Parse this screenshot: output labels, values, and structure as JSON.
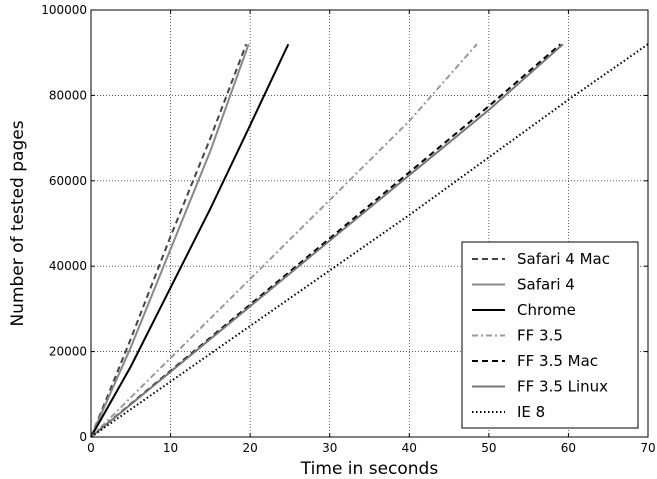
{
  "chart_data": {
    "type": "line",
    "xlabel": "Time in seconds",
    "ylabel": "Number of tested pages",
    "xlim": [
      0,
      70
    ],
    "ylim": [
      0,
      100000
    ],
    "xticks": [
      0,
      10,
      20,
      30,
      40,
      50,
      60,
      70
    ],
    "yticks": [
      0,
      20000,
      40000,
      60000,
      80000,
      100000
    ],
    "xtick_labels": [
      "0",
      "10",
      "20",
      "30",
      "40",
      "50",
      "60",
      "70"
    ],
    "ytick_labels": [
      "0",
      "20000",
      "40000",
      "60000",
      "80000",
      "100000"
    ],
    "grid": true,
    "legend_position": "lower-right",
    "series": [
      {
        "name": "Safari 4 Mac",
        "color": "#444444",
        "dash": "dashed",
        "x": [
          0,
          5,
          10,
          15,
          19.5
        ],
        "y": [
          0,
          23000,
          47000,
          70000,
          92000
        ]
      },
      {
        "name": "Safari 4",
        "color": "#888888",
        "dash": "solid",
        "x": [
          0,
          5,
          10,
          15,
          19.8
        ],
        "y": [
          0,
          21000,
          44000,
          67000,
          92000
        ]
      },
      {
        "name": "Chrome",
        "color": "#000000",
        "dash": "solid",
        "x": [
          0,
          5,
          10,
          15,
          20,
          24.8
        ],
        "y": [
          0,
          16500,
          35000,
          53500,
          73000,
          92000
        ]
      },
      {
        "name": "FF 3.5",
        "color": "#999999",
        "dash": "dashdot",
        "x": [
          0,
          10,
          20,
          30,
          40,
          48.5
        ],
        "y": [
          0,
          18500,
          37000,
          55500,
          74000,
          92000
        ]
      },
      {
        "name": "FF 3.5 Mac",
        "color": "#000000",
        "dash": "dashed",
        "x": [
          0,
          10,
          20,
          30,
          40,
          50,
          59
        ],
        "y": [
          0,
          15500,
          31000,
          46500,
          62000,
          77500,
          92000
        ]
      },
      {
        "name": "FF 3.5 Linux",
        "color": "#777777",
        "dash": "solid",
        "x": [
          0,
          10,
          20,
          30,
          40,
          50,
          59.3
        ],
        "y": [
          0,
          15300,
          30600,
          46000,
          61300,
          76600,
          92000
        ]
      },
      {
        "name": "IE 8",
        "color": "#000000",
        "dash": "dotted",
        "x": [
          0,
          10,
          20,
          30,
          40,
          50,
          60,
          70
        ],
        "y": [
          0,
          13000,
          26000,
          39000,
          52000,
          65500,
          79000,
          92000
        ]
      }
    ]
  }
}
